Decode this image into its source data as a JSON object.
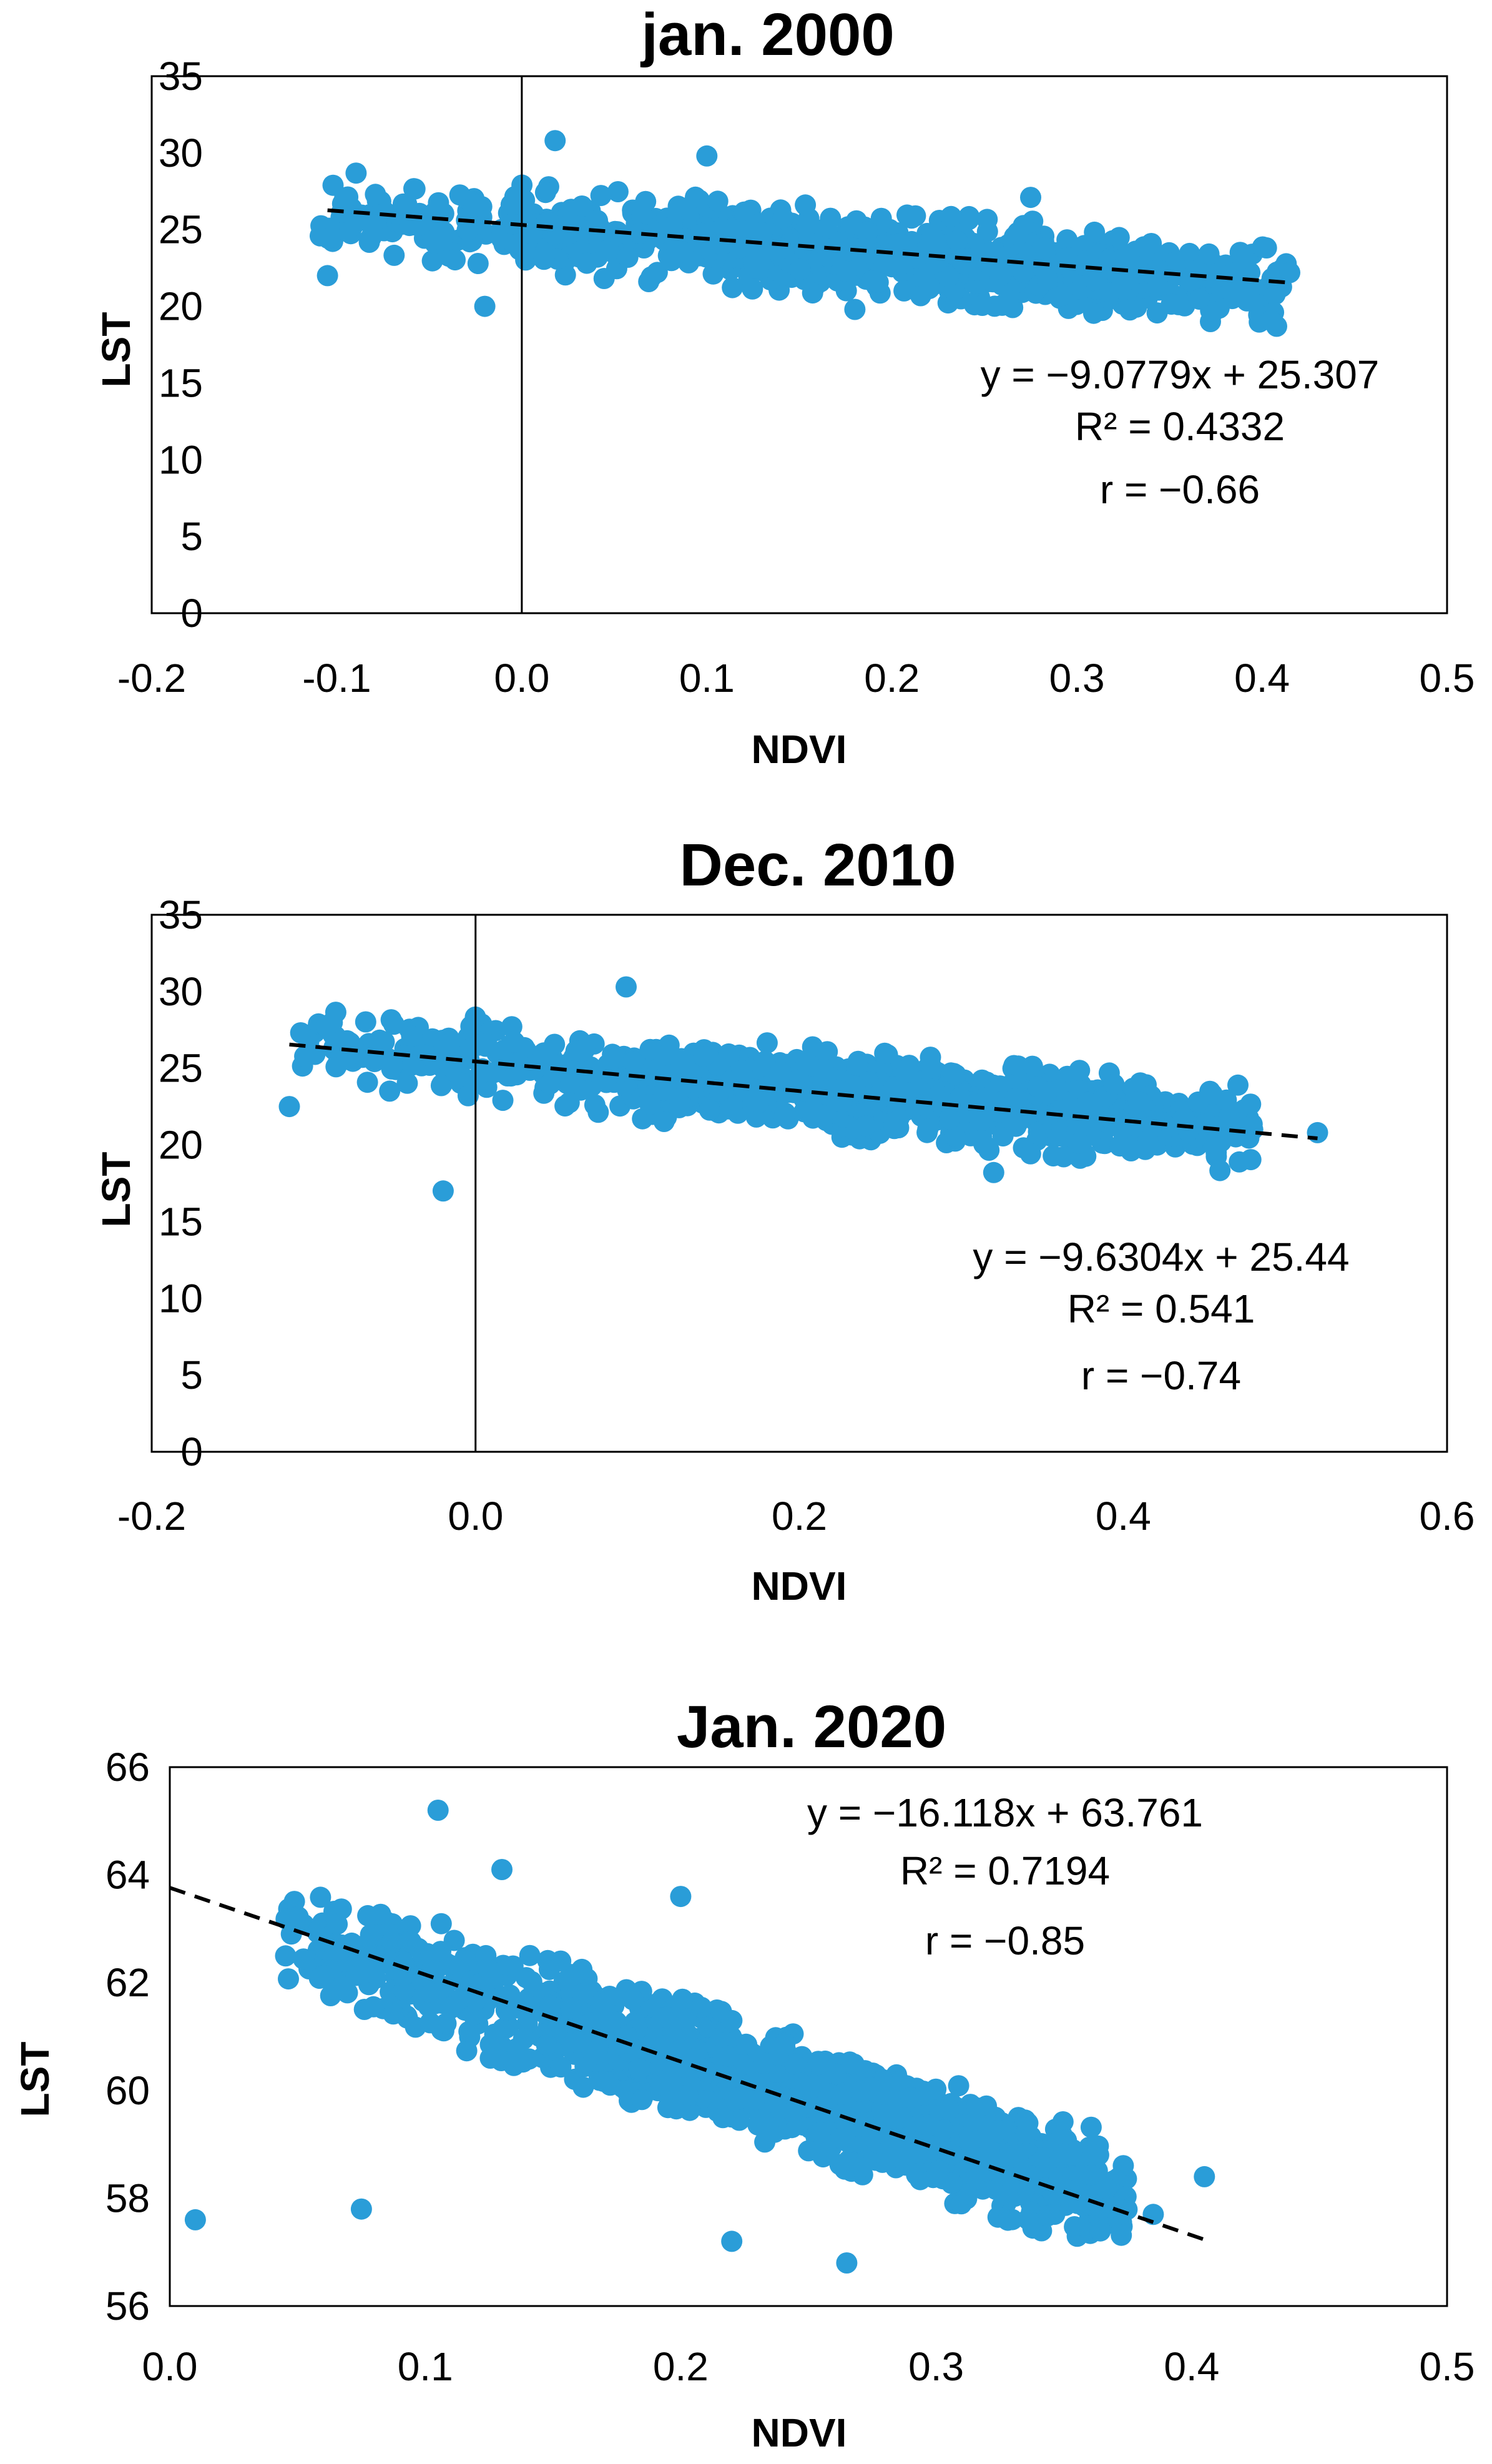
{
  "chart_data": [
    {
      "type": "scatter",
      "title": "jan. 2000",
      "xlabel": "NDVI",
      "ylabel": "LST",
      "xlim": [
        -0.2,
        0.5
      ],
      "ylim": [
        0,
        35
      ],
      "xticks": [
        "-0.2",
        "-0.1",
        "0.0",
        "0.1",
        "0.2",
        "0.3",
        "0.4",
        "0.5"
      ],
      "yticks": [
        "0",
        "5",
        "10",
        "15",
        "20",
        "25",
        "30",
        "35"
      ],
      "point_color": "#2a9dd8",
      "series": [
        {
          "points": {
            "x_range": [
              -0.11,
              0.415
            ],
            "count": 900,
            "y_at_min_x": 26,
            "y_at_max_x": 21.5,
            "y_spread": 2.2
          },
          "outliers": [
            [
              -0.105,
              22.0
            ],
            [
              0.018,
              30.8
            ],
            [
              0.1,
              29.8
            ],
            [
              0.18,
              19.8
            ],
            [
              0.275,
              27.1
            ],
            [
              -0.02,
              20.0
            ],
            [
              0.415,
              22.2
            ]
          ]
        }
      ],
      "trendline": {
        "slope": -9.0779,
        "intercept": 25.307,
        "x_range": [
          -0.105,
          0.415
        ],
        "style": "dashed",
        "color": "#000000"
      },
      "annotations": [
        "y = −9.0779x + 25.307",
        "R² = 0.4332",
        "r = −0.66"
      ]
    },
    {
      "type": "scatter",
      "title": "Dec. 2010",
      "xlabel": "NDVI",
      "ylabel": "LST",
      "xlim": [
        -0.2,
        0.6
      ],
      "ylim": [
        0,
        35
      ],
      "xticks": [
        "-0.2",
        "0.0",
        "0.2",
        "0.4",
        "0.6"
      ],
      "yticks": [
        "0",
        "5",
        "10",
        "15",
        "20",
        "25",
        "30",
        "35"
      ],
      "point_color": "#2a9dd8",
      "series": [
        {
          "points": {
            "x_range": [
              -0.11,
              0.48
            ],
            "count": 1000,
            "y_at_min_x": 26.5,
            "y_at_max_x": 21,
            "y_spread": 2.2
          },
          "outliers": [
            [
              -0.115,
              22.5
            ],
            [
              -0.02,
              17.0
            ],
            [
              0.093,
              30.3
            ],
            [
              0.32,
              18.2
            ],
            [
              0.455,
              23.3
            ],
            [
              0.48,
              21.0
            ],
            [
              0.52,
              20.8
            ]
          ]
        }
      ],
      "trendline": {
        "slope": -9.6304,
        "intercept": 25.44,
        "x_range": [
          -0.115,
          0.52
        ],
        "style": "dashed",
        "color": "#000000"
      },
      "annotations": [
        "y = −9.6304x + 25.44",
        "R² = 0.541",
        "r = −0.74"
      ]
    },
    {
      "type": "scatter",
      "title": "Jan. 2020",
      "xlabel": "NDVI",
      "ylabel": "LST",
      "xlim": [
        0.0,
        0.5
      ],
      "ylim": [
        56,
        66
      ],
      "xticks": [
        "0.0",
        "0.1",
        "0.2",
        "0.3",
        "0.4",
        "0.5"
      ],
      "yticks": [
        "56",
        "58",
        "60",
        "62",
        "64",
        "66"
      ],
      "point_color": "#2a9dd8",
      "series": [
        {
          "points": {
            "x_range": [
              0.045,
              0.375
            ],
            "count": 1500,
            "y_at_min_x": 62.9,
            "y_at_max_x": 58.0,
            "y_spread": 0.85
          },
          "outliers": [
            [
              0.01,
              57.6
            ],
            [
              0.075,
              57.8
            ],
            [
              0.105,
              65.2
            ],
            [
              0.13,
              64.1
            ],
            [
              0.2,
              63.6
            ],
            [
              0.265,
              56.8
            ],
            [
              0.405,
              58.4
            ],
            [
              0.385,
              57.7
            ],
            [
              0.22,
              57.2
            ]
          ]
        }
      ],
      "trendline": {
        "slope": -16.118,
        "intercept": 63.761,
        "x_range": [
          0.0,
          0.405
        ],
        "style": "dashed",
        "color": "#000000"
      },
      "annotations": [
        "y = −16.118x + 63.761",
        "R² = 0.7194",
        "r = −0.85"
      ]
    }
  ]
}
